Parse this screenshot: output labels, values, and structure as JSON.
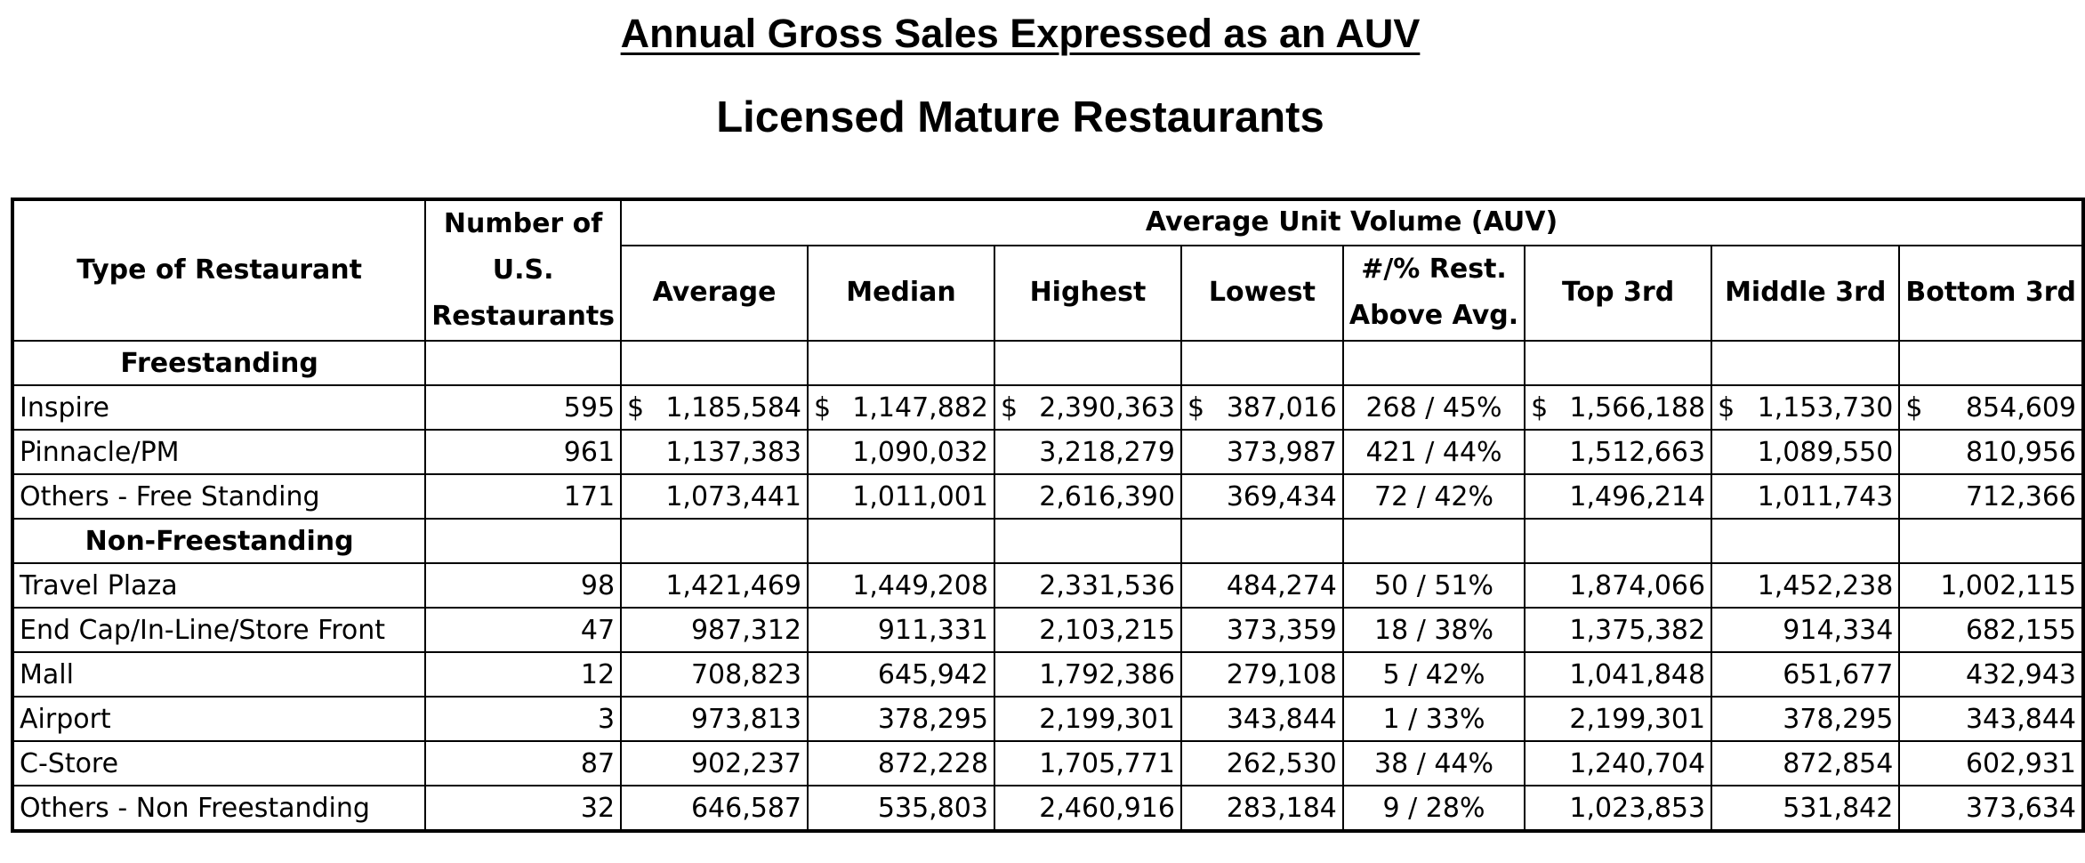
{
  "title": "Annual Gross Sales Expressed as an AUV",
  "subtitle": "Licensed Mature Restaurants",
  "table": {
    "head": {
      "type": "Type of Restaurant",
      "count_line1": "Number of",
      "count_line2": "U.S.",
      "count_line3": "Restaurants",
      "group": "Average Unit Volume (AUV)",
      "average": "Average",
      "median": "Median",
      "highest": "Highest",
      "lowest": "Lowest",
      "above_line1": "#/% Rest.",
      "above_line2": "Above Avg.",
      "top": "Top 3rd",
      "middle": "Middle 3rd",
      "bottom": "Bottom 3rd"
    },
    "sections": [
      {
        "name": "Freestanding",
        "rows": [
          {
            "type": "Inspire",
            "count": "595",
            "average": "1,185,584",
            "median": "1,147,882",
            "highest": "2,390,363",
            "lowest": "387,016",
            "above": "268 / 45%",
            "top": "1,566,188",
            "middle": "1,153,730",
            "bottom": "854,609"
          },
          {
            "type": "Pinnacle/PM",
            "count": "961",
            "average": "1,137,383",
            "median": "1,090,032",
            "highest": "3,218,279",
            "lowest": "373,987",
            "above": "421 / 44%",
            "top": "1,512,663",
            "middle": "1,089,550",
            "bottom": "810,956"
          },
          {
            "type": "Others - Free Standing",
            "count": "171",
            "average": "1,073,441",
            "median": "1,011,001",
            "highest": "2,616,390",
            "lowest": "369,434",
            "above": "72 / 42%",
            "top": "1,496,214",
            "middle": "1,011,743",
            "bottom": "712,366"
          }
        ]
      },
      {
        "name": "Non-Freestanding",
        "rows": [
          {
            "type": "Travel Plaza",
            "count": "98",
            "average": "1,421,469",
            "median": "1,449,208",
            "highest": "2,331,536",
            "lowest": "484,274",
            "above": "50 / 51%",
            "top": "1,874,066",
            "middle": "1,452,238",
            "bottom": "1,002,115"
          },
          {
            "type": "End Cap/In-Line/Store Front",
            "count": "47",
            "average": "987,312",
            "median": "911,331",
            "highest": "2,103,215",
            "lowest": "373,359",
            "above": "18 / 38%",
            "top": "1,375,382",
            "middle": "914,334",
            "bottom": "682,155"
          },
          {
            "type": "Mall",
            "count": "12",
            "average": "708,823",
            "median": "645,942",
            "highest": "1,792,386",
            "lowest": "279,108",
            "above": "5 / 42%",
            "top": "1,041,848",
            "middle": "651,677",
            "bottom": "432,943"
          },
          {
            "type": "Airport",
            "count": "3",
            "average": "973,813",
            "median": "378,295",
            "highest": "2,199,301",
            "lowest": "343,844",
            "above": "1 / 33%",
            "top": "2,199,301",
            "middle": "378,295",
            "bottom": "343,844"
          },
          {
            "type": "C-Store",
            "count": "87",
            "average": "902,237",
            "median": "872,228",
            "highest": "1,705,771",
            "lowest": "262,530",
            "above": "38 / 44%",
            "top": "1,240,704",
            "middle": "872,854",
            "bottom": "602,931"
          },
          {
            "type": "Others - Non Freestanding",
            "count": "32",
            "average": "646,587",
            "median": "535,803",
            "highest": "2,460,916",
            "lowest": "283,184",
            "above": "9 / 28%",
            "top": "1,023,853",
            "middle": "531,842",
            "bottom": "373,634"
          }
        ]
      }
    ],
    "currency_symbol": "$"
  }
}
